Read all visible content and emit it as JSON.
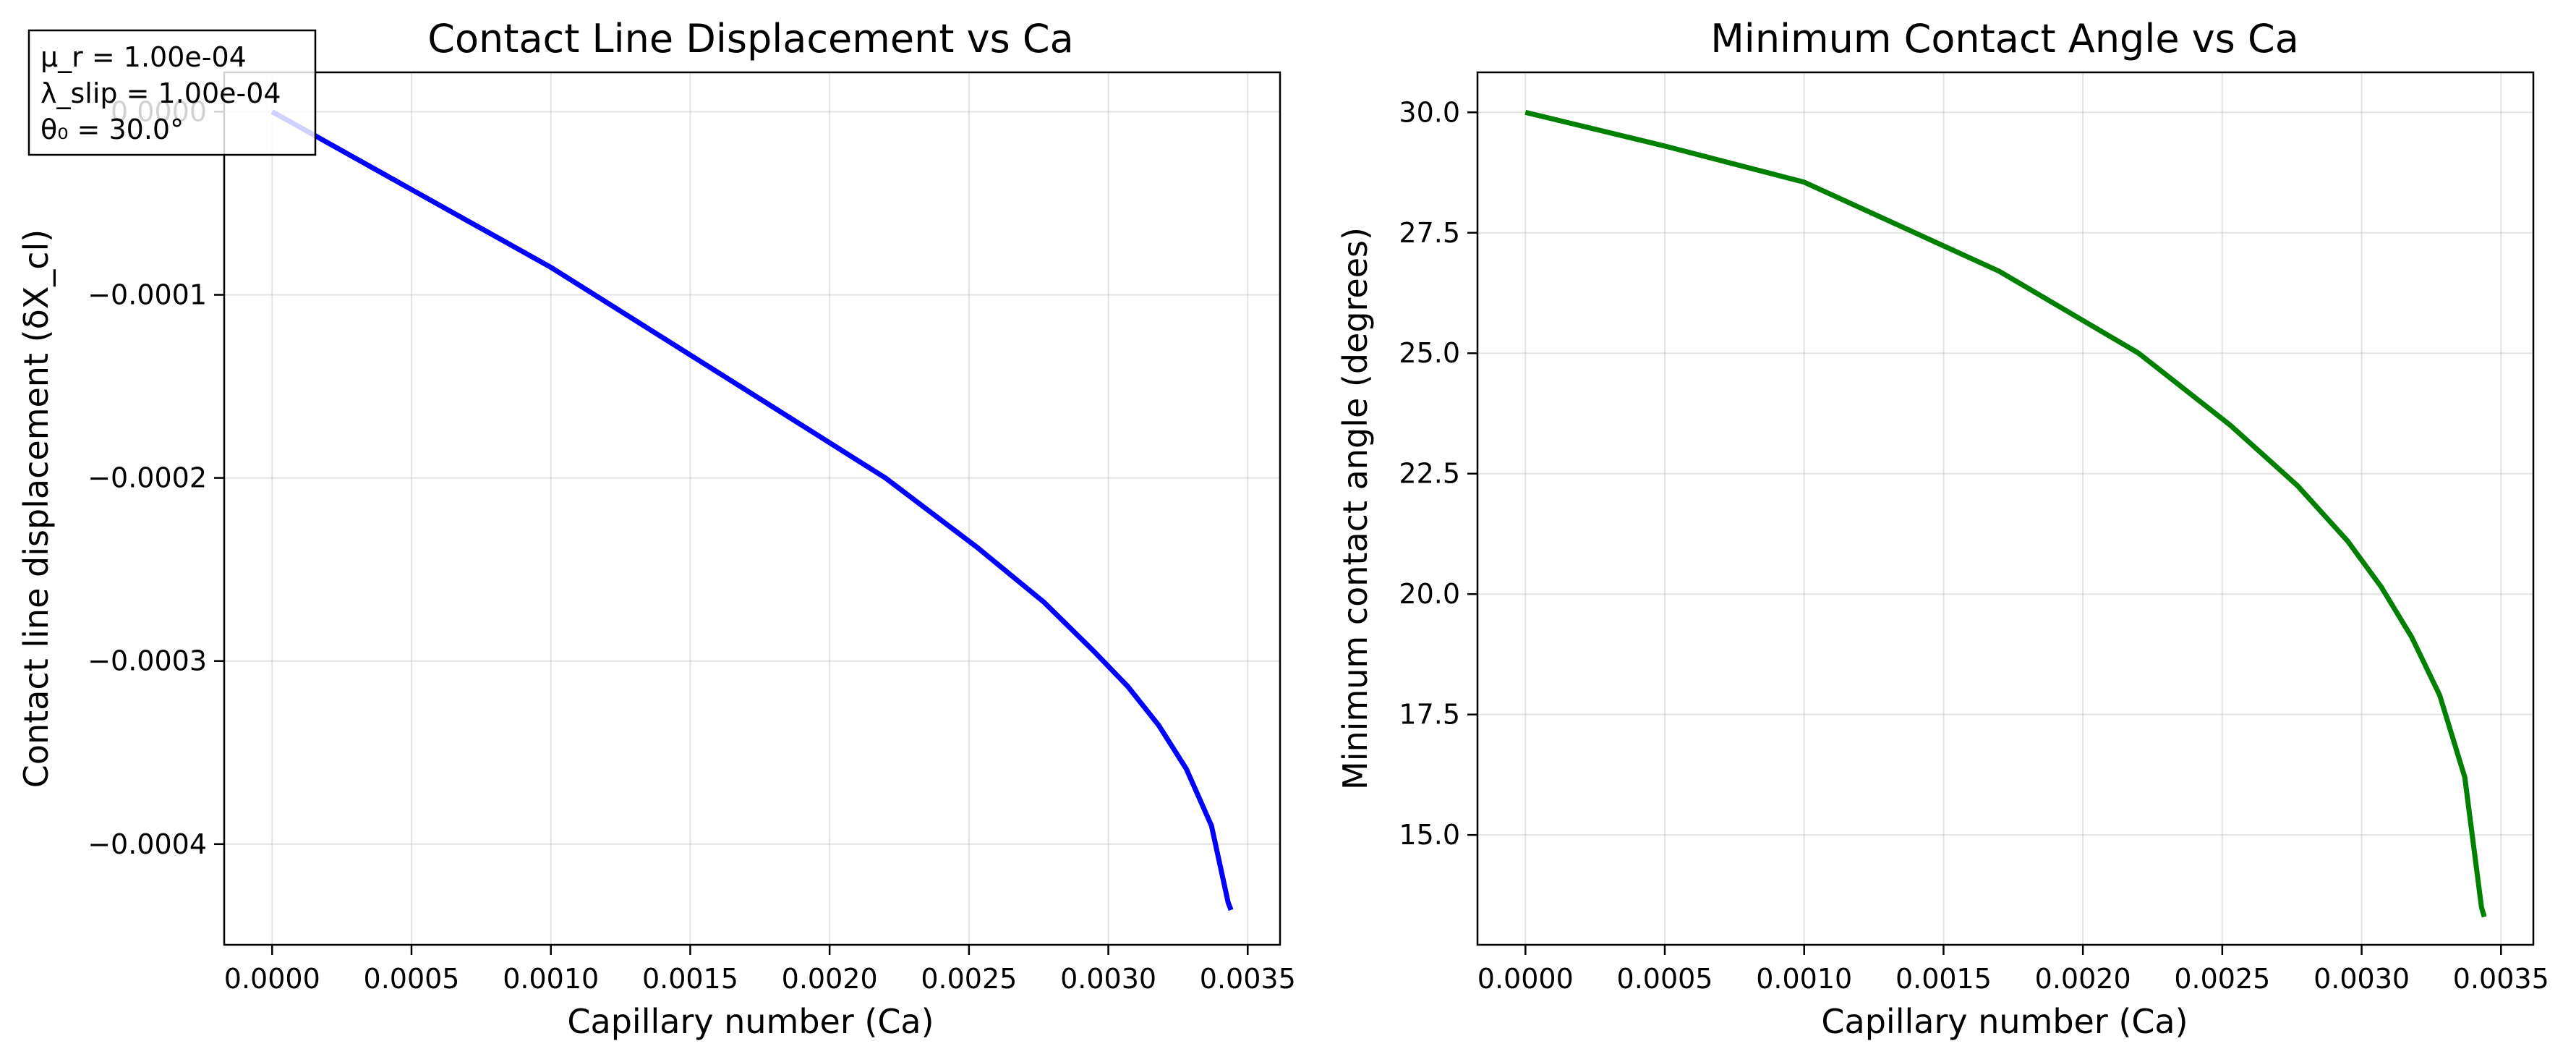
{
  "chart_data": [
    {
      "type": "line",
      "title": "Contact Line Displacement vs Ca",
      "xlabel": "Capillary number (Ca)",
      "ylabel": "Contact line displacement (δX_cl)",
      "xlim": [
        -0.000172,
        0.003616
      ],
      "ylim": [
        -0.000455,
        2.15e-05
      ],
      "xticks": [
        "0.0000",
        "0.0005",
        "0.0010",
        "0.0015",
        "0.0020",
        "0.0025",
        "0.0030",
        "0.0035"
      ],
      "xtick_values": [
        0,
        0.0005,
        0.001,
        0.0015,
        0.002,
        0.0025,
        0.003,
        0.0035
      ],
      "yticks": [
        "0.0000",
        "−0.0001",
        "−0.0002",
        "−0.0003",
        "−0.0004"
      ],
      "ytick_values": [
        0,
        -0.0001,
        -0.0002,
        -0.0003,
        -0.0004
      ],
      "grid": true,
      "annotation": [
        "μ_r = 1.00e-04",
        "λ_slip = 1.00e-04",
        "θ₀ = 30.0°"
      ],
      "annotation_position": "top-left",
      "series": [
        {
          "color": "#0000ff",
          "x": [
            0,
            0.0005,
            0.001,
            0.0017,
            0.0022,
            0.00253,
            0.00277,
            0.00295,
            0.00307,
            0.00318,
            0.00328,
            0.00337,
            0.00341,
            0.00343,
            0.00344
          ],
          "y": [
            0,
            -4.25e-05,
            -8.5e-05,
            -0.000152,
            -0.0002,
            -0.000238,
            -0.000268,
            -0.000295,
            -0.000314,
            -0.000335,
            -0.000359,
            -0.00039,
            -0.000418,
            -0.000432,
            -0.000436
          ]
        }
      ]
    },
    {
      "type": "line",
      "title": "Minimum Contact Angle vs Ca",
      "xlabel": "Capillary number (Ca)",
      "ylabel": "Minimum contact angle (degrees)",
      "xlim": [
        -0.000172,
        0.003616
      ],
      "ylim": [
        12.72,
        30.83
      ],
      "xticks": [
        "0.0000",
        "0.0005",
        "0.0010",
        "0.0015",
        "0.0020",
        "0.0025",
        "0.0030",
        "0.0035"
      ],
      "xtick_values": [
        0,
        0.0005,
        0.001,
        0.0015,
        0.002,
        0.0025,
        0.003,
        0.0035
      ],
      "yticks": [
        "15.0",
        "17.5",
        "20.0",
        "22.5",
        "25.0",
        "27.5",
        "30.0"
      ],
      "ytick_values": [
        15,
        17.5,
        20,
        22.5,
        25,
        27.5,
        30
      ],
      "grid": true,
      "series": [
        {
          "color": "#008000",
          "x": [
            0,
            0.0005,
            0.001,
            0.0017,
            0.0022,
            0.00253,
            0.00277,
            0.00295,
            0.00307,
            0.00318,
            0.00328,
            0.00337,
            0.00341,
            0.00343,
            0.00344
          ],
          "y": [
            30.0,
            29.3,
            28.55,
            26.7,
            25.0,
            23.5,
            22.25,
            21.1,
            20.15,
            19.1,
            17.9,
            16.2,
            14.4,
            13.5,
            13.3
          ]
        }
      ]
    }
  ]
}
